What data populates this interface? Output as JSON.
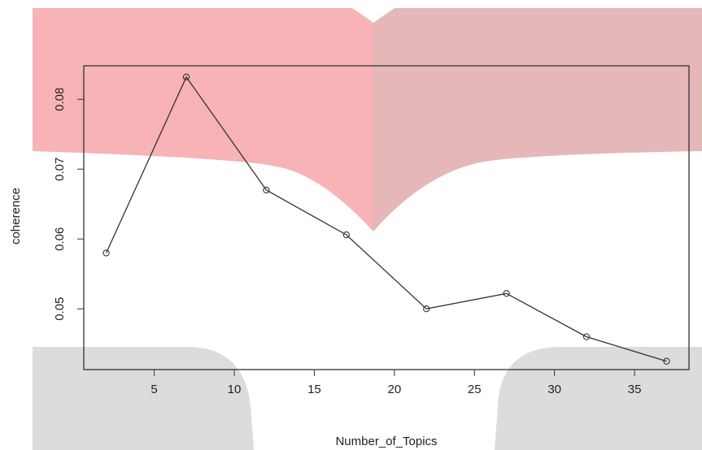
{
  "colors": {
    "pink_overlay": "#f7b3b6",
    "pink_overlay_right": "#e5b7b8",
    "grey_overlay": "#dcdcdc",
    "line": "#333333",
    "box": "#333333"
  },
  "chart_data": {
    "type": "line",
    "title": "",
    "xlabel": "Number_of_Topics",
    "ylabel": "coherence",
    "x": [
      2,
      7,
      12,
      17,
      22,
      27,
      32,
      37
    ],
    "y": [
      0.058,
      0.0832,
      0.067,
      0.0606,
      0.05,
      0.0522,
      0.046,
      0.0425
    ],
    "xlim": [
      0.6,
      38.4
    ],
    "ylim": [
      0.0413,
      0.0848
    ],
    "xticks": [
      5,
      10,
      15,
      20,
      25,
      30,
      35
    ],
    "xtick_labels": [
      "5",
      "10",
      "15",
      "20",
      "25",
      "30",
      "35"
    ],
    "yticks": [
      0.05,
      0.06,
      0.07,
      0.08
    ],
    "ytick_labels": [
      "0.05",
      "0.06",
      "0.07",
      "0.08"
    ],
    "marker": "open-circle",
    "grid": false,
    "legend": "none"
  }
}
